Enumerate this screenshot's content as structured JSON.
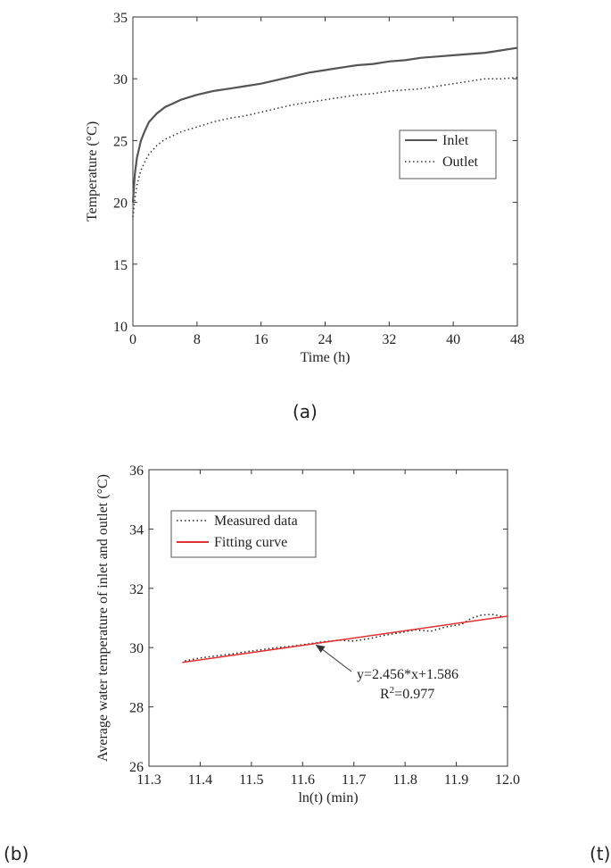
{
  "captions": {
    "a": "(a)",
    "b": "(b)",
    "t": "(t)"
  },
  "chart_data": [
    {
      "type": "line",
      "xlabel": "Time (h)",
      "ylabel": "Temperature (°C)",
      "xlim": [
        0,
        48
      ],
      "ylim": [
        10,
        35
      ],
      "xticks": [
        0,
        8,
        16,
        24,
        32,
        40,
        48
      ],
      "yticks": [
        10,
        15,
        20,
        25,
        30,
        35
      ],
      "legend": "right-middle",
      "grid": false,
      "series": [
        {
          "name": "Inlet",
          "style": "solid",
          "color": "#555555",
          "x": [
            0,
            0.25,
            0.5,
            1,
            1.5,
            2,
            3,
            4,
            5,
            6,
            8,
            10,
            12,
            14,
            16,
            18,
            20,
            22,
            24,
            26,
            28,
            30,
            32,
            34,
            36,
            38,
            40,
            42,
            44,
            46,
            48
          ],
          "y": [
            20.0,
            22.3,
            23.6,
            25.0,
            25.8,
            26.5,
            27.2,
            27.7,
            28.0,
            28.3,
            28.7,
            29.0,
            29.2,
            29.4,
            29.6,
            29.9,
            30.2,
            30.5,
            30.7,
            30.9,
            31.1,
            31.2,
            31.4,
            31.5,
            31.7,
            31.8,
            31.9,
            32.0,
            32.1,
            32.3,
            32.5
          ]
        },
        {
          "name": "Outlet",
          "style": "dotted",
          "color": "#333333",
          "x": [
            0,
            0.25,
            0.5,
            1,
            1.5,
            2,
            3,
            4,
            5,
            6,
            8,
            10,
            12,
            14,
            16,
            18,
            20,
            22,
            24,
            26,
            28,
            30,
            32,
            34,
            36,
            38,
            40,
            42,
            44,
            46,
            48
          ],
          "y": [
            18.8,
            20.3,
            21.4,
            22.6,
            23.3,
            23.9,
            24.6,
            25.1,
            25.4,
            25.7,
            26.1,
            26.5,
            26.8,
            27.0,
            27.3,
            27.6,
            27.9,
            28.1,
            28.3,
            28.5,
            28.7,
            28.8,
            29.0,
            29.1,
            29.2,
            29.4,
            29.6,
            29.8,
            30.0,
            30.0,
            30.1
          ]
        }
      ]
    },
    {
      "type": "line",
      "xlabel": "ln(t) (min)",
      "ylabel": "Average water temperature of inlet and outlet (°C)",
      "xlim": [
        11.3,
        12.0
      ],
      "ylim": [
        26,
        36
      ],
      "xticks": [
        11.3,
        11.4,
        11.5,
        11.6,
        11.7,
        11.8,
        11.9,
        12.0
      ],
      "yticks": [
        26,
        28,
        30,
        32,
        34,
        36
      ],
      "legend": "top-left",
      "grid": false,
      "annotation": {
        "equation": "y=2.456*x+1.586",
        "r2_prefix": "R",
        "r2_sup": "2",
        "r2_value": "=0.977"
      },
      "series": [
        {
          "name": "Measured data",
          "style": "dotted",
          "color": "#222222",
          "x": [
            11.37,
            11.4,
            11.43,
            11.46,
            11.49,
            11.52,
            11.55,
            11.58,
            11.61,
            11.64,
            11.67,
            11.7,
            11.73,
            11.76,
            11.79,
            11.82,
            11.85,
            11.88,
            11.91,
            11.93,
            11.95,
            11.97,
            11.99
          ],
          "y": [
            29.55,
            29.65,
            29.72,
            29.78,
            29.86,
            29.93,
            30.0,
            30.05,
            30.12,
            30.2,
            30.25,
            30.22,
            30.3,
            30.42,
            30.5,
            30.6,
            30.55,
            30.7,
            30.78,
            31.0,
            31.1,
            31.12,
            31.05
          ]
        },
        {
          "name": "Fitting curve",
          "style": "solid",
          "color": "#e03030",
          "x": [
            11.365,
            12.0
          ],
          "y": [
            29.5,
            31.06
          ]
        }
      ]
    }
  ]
}
